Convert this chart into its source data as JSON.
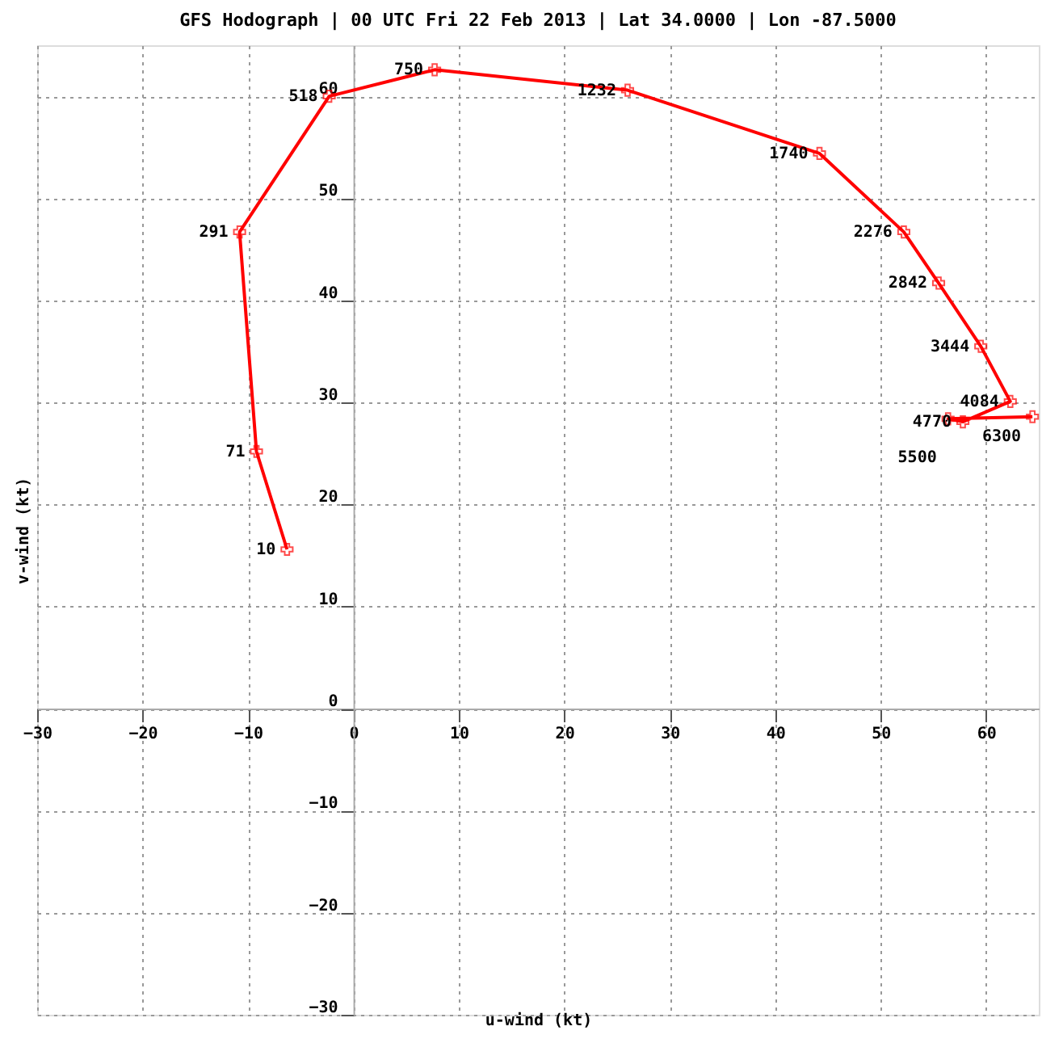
{
  "chart_data": {
    "type": "line",
    "title": "GFS Hodograph | 00 UTC Fri 22 Feb 2013 | Lat 34.0000 | Lon -87.5000",
    "xlabel": "u-wind (kt)",
    "ylabel": "v-wind (kt)",
    "series": [
      {
        "color": "#ff0000",
        "x": [
          -6.3,
          -9.2,
          -10.8,
          -2.3,
          7.7,
          26.0,
          44.2,
          52.2,
          55.5,
          59.5,
          62.3,
          57.8,
          56.4,
          64.4
        ],
        "values": [
          15.6,
          25.2,
          46.7,
          60.0,
          62.6,
          60.6,
          54.4,
          46.7,
          41.7,
          35.5,
          30.1,
          28.1,
          28.4,
          28.6
        ]
      }
    ],
    "annotations": [
      {
        "text": "10",
        "x": -6.3,
        "y": 15.6
      },
      {
        "text": "71",
        "x": -9.2,
        "y": 25.2
      },
      {
        "text": "291",
        "x": -10.8,
        "y": 46.7
      },
      {
        "text": "518",
        "x": -2.3,
        "y": 60.0
      },
      {
        "text": "750",
        "x": 7.7,
        "y": 62.6
      },
      {
        "text": "1232",
        "x": 26.0,
        "y": 60.6
      },
      {
        "text": "1740",
        "x": 44.2,
        "y": 54.4
      },
      {
        "text": "2276",
        "x": 52.2,
        "y": 46.7
      },
      {
        "text": "2842",
        "x": 55.5,
        "y": 41.7
      },
      {
        "text": "3444",
        "x": 59.5,
        "y": 35.5
      },
      {
        "text": "4084",
        "x": 62.3,
        "y": 30.1
      },
      {
        "text": "4770",
        "x": 57.8,
        "y": 28.1
      },
      {
        "text": "5500",
        "x": 56.4,
        "y": 28.4
      },
      {
        "text": "6300",
        "x": 64.4,
        "y": 28.6
      }
    ],
    "xlim": [
      -30,
      65
    ],
    "ylim": [
      -30,
      65
    ],
    "xticks": [
      -30,
      -20,
      -10,
      0,
      10,
      20,
      30,
      40,
      50,
      60
    ],
    "yticks": [
      -30,
      -20,
      -10,
      0,
      10,
      20,
      30,
      40,
      50,
      60
    ],
    "grid": true,
    "marker": "cross",
    "line_style": "solid"
  }
}
